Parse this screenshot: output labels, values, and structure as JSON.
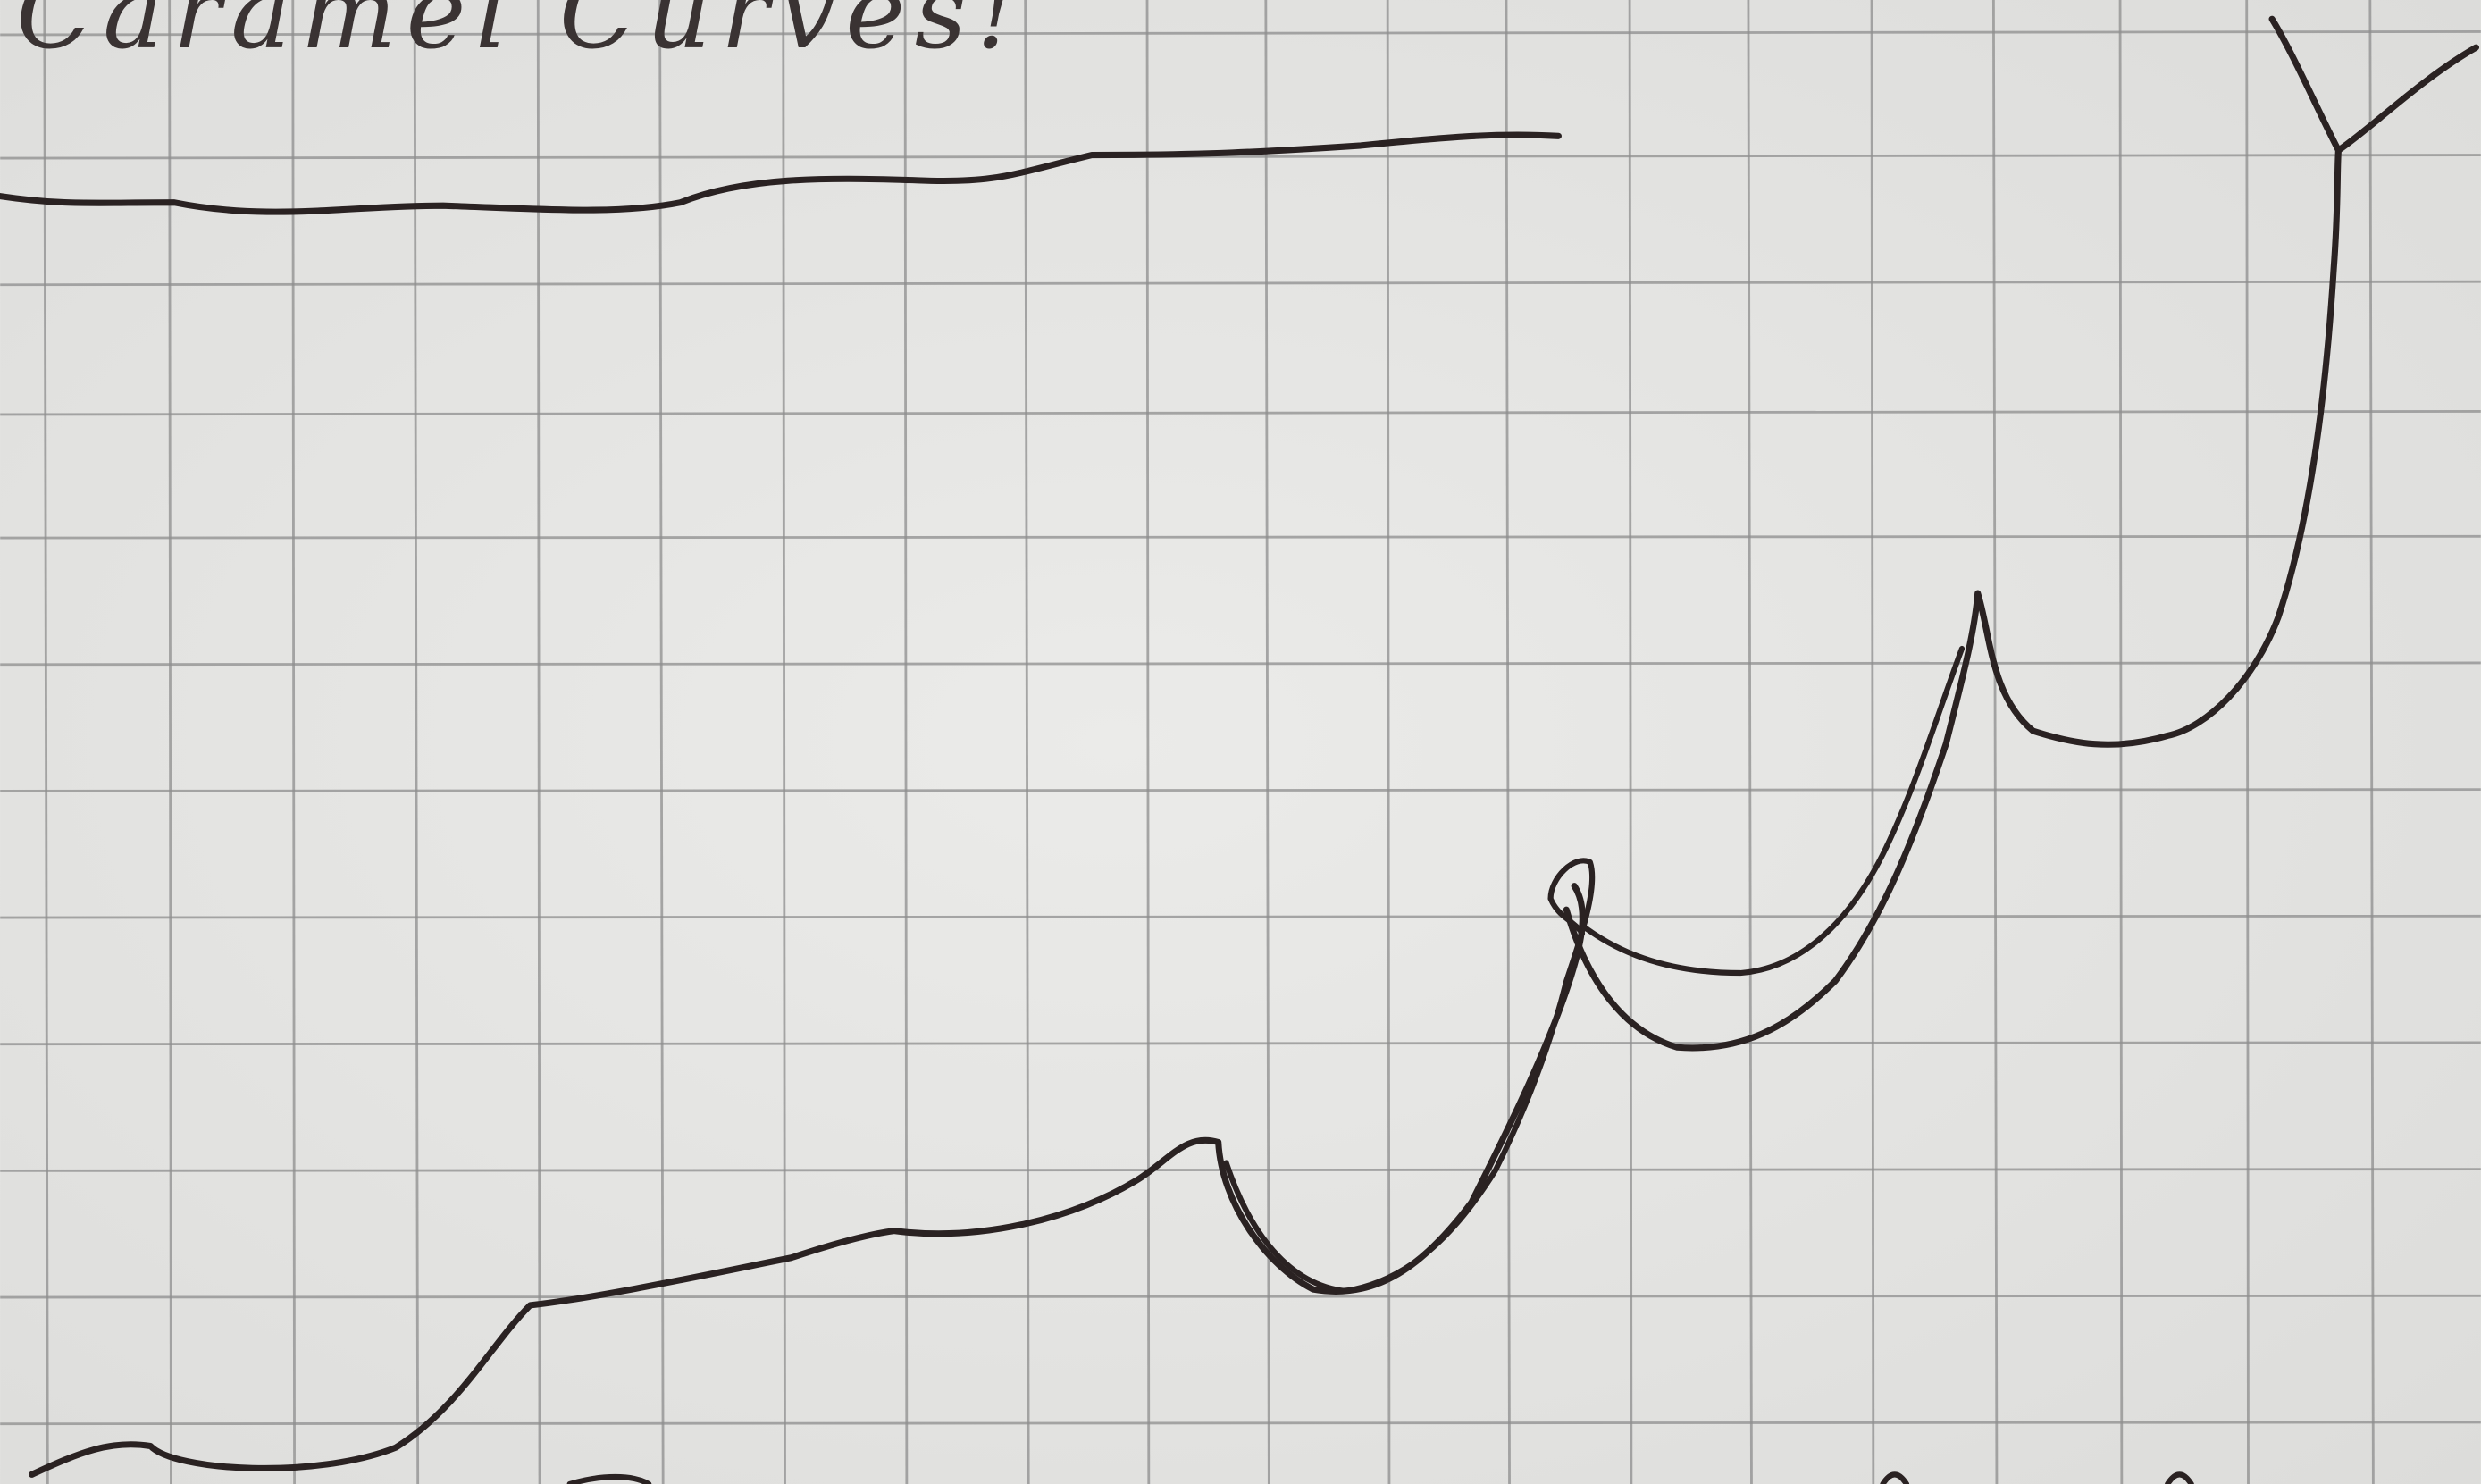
{
  "sketch": {
    "heading": "Caramel Curves!"
  }
}
